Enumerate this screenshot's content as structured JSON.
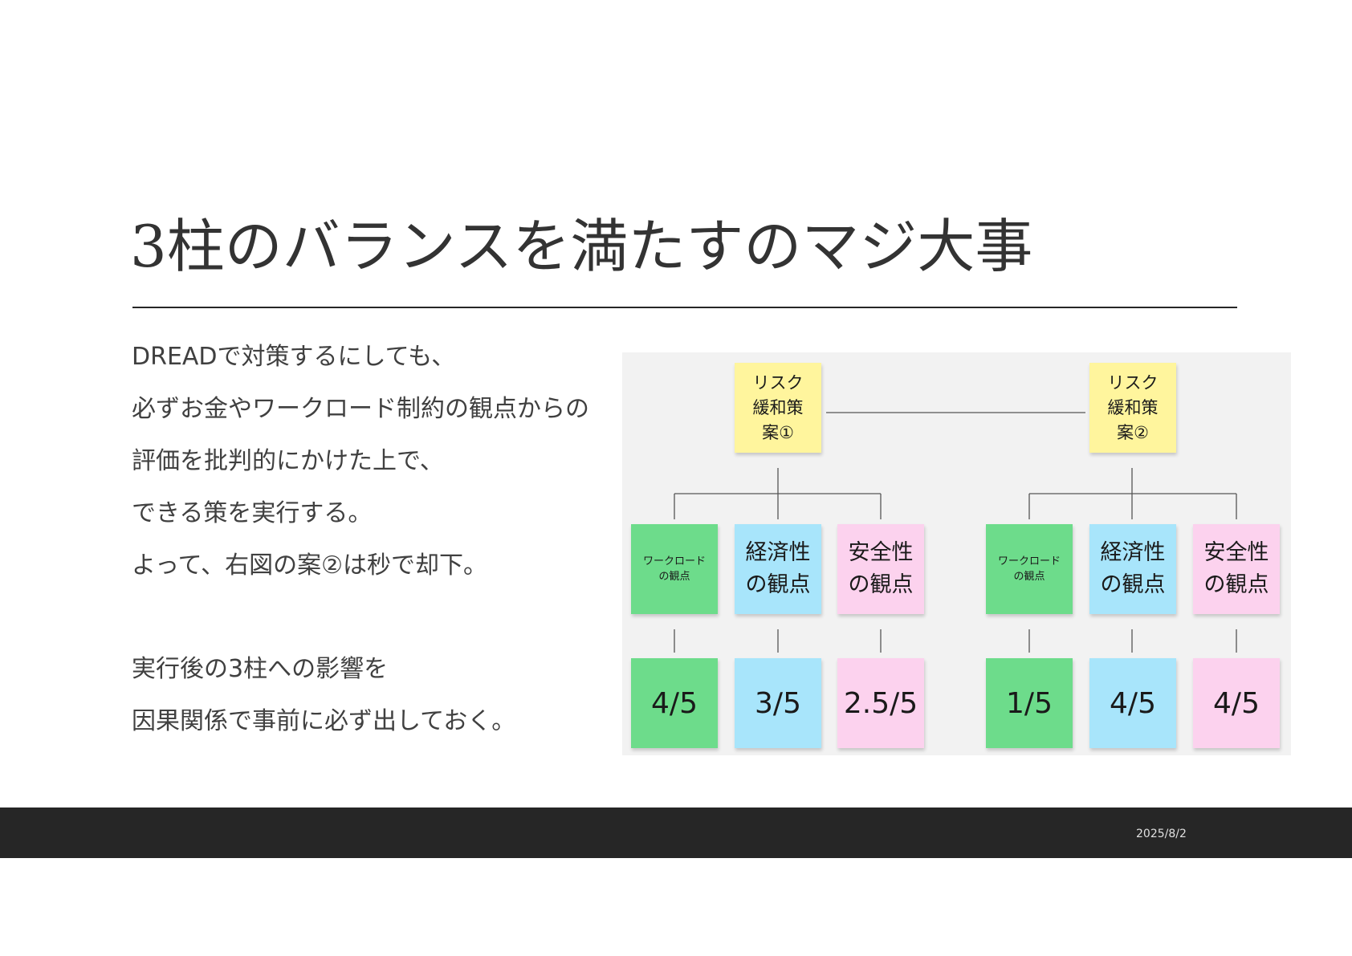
{
  "slide": {
    "title": "3柱のバランスを満たすのマジ大事",
    "body_lines": [
      "DREADで対策するにしても、",
      "必ずお金やワークロード制約の観点からの",
      "評価を批判的にかけた上で、",
      "できる策を実行する。",
      "よって、右図の案②は秒で却下。"
    ],
    "body_lines_2": [
      "実行後の3柱への影響を",
      "因果関係で事前に必ず出しておく。"
    ],
    "footer_date": "2025/8/2"
  },
  "diagram": {
    "plan1": {
      "title": "リスク\n緩和策\n案①",
      "workload_label": "ワークロード\nの観点",
      "economic_label": "経済性\nの観点",
      "safety_label": "安全性\nの観点",
      "workload_score": "4/5",
      "economic_score": "3/5",
      "safety_score": "2.5/5"
    },
    "plan2": {
      "title": "リスク\n緩和策\n案②",
      "workload_label": "ワークロード\nの観点",
      "economic_label": "経済性\nの観点",
      "safety_label": "安全性\nの観点",
      "workload_score": "1/5",
      "economic_score": "4/5",
      "safety_score": "4/5"
    },
    "colors": {
      "yellow": "#fff59d",
      "green": "#6ddc8b",
      "blue": "#a8e5fb",
      "pink": "#fcd2ee",
      "footer": "#262626"
    }
  }
}
